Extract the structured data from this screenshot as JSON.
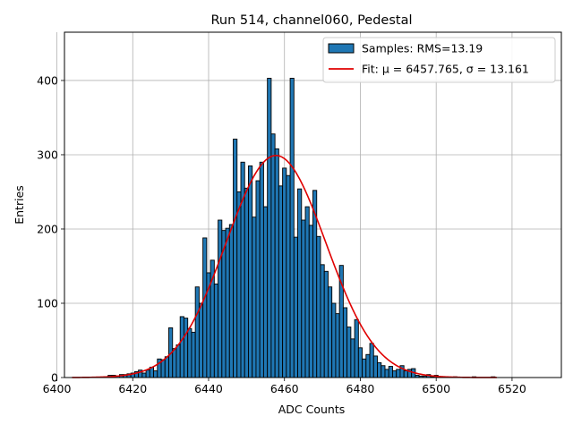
{
  "chart_data": {
    "type": "bar",
    "title": "Run 514, channel060, Pedestal",
    "xlabel": "ADC Counts",
    "ylabel": "Entries",
    "xlim": [
      6402,
      6533
    ],
    "ylim": [
      0,
      465
    ],
    "xticks": [
      6400,
      6420,
      6440,
      6460,
      6480,
      6500,
      6520
    ],
    "yticks": [
      0,
      100,
      200,
      300,
      400
    ],
    "grid": true,
    "legend_position": "top-right",
    "series": [
      {
        "name": "Samples: RMS=13.19",
        "kind": "histogram",
        "color": "#1f77b4",
        "edgecolor": "#000000",
        "bin_width": 1,
        "bins": [
          [
            6414,
            3
          ],
          [
            6415,
            3
          ],
          [
            6416,
            2
          ],
          [
            6417,
            4
          ],
          [
            6418,
            4
          ],
          [
            6419,
            5
          ],
          [
            6420,
            6
          ],
          [
            6421,
            8
          ],
          [
            6422,
            10
          ],
          [
            6423,
            6
          ],
          [
            6424,
            10
          ],
          [
            6425,
            14
          ],
          [
            6426,
            9
          ],
          [
            6427,
            25
          ],
          [
            6428,
            24
          ],
          [
            6429,
            28
          ],
          [
            6430,
            67
          ],
          [
            6431,
            39
          ],
          [
            6432,
            44
          ],
          [
            6433,
            82
          ],
          [
            6434,
            80
          ],
          [
            6435,
            66
          ],
          [
            6436,
            61
          ],
          [
            6437,
            122
          ],
          [
            6438,
            100
          ],
          [
            6439,
            188
          ],
          [
            6440,
            141
          ],
          [
            6441,
            158
          ],
          [
            6442,
            126
          ],
          [
            6443,
            212
          ],
          [
            6444,
            198
          ],
          [
            6445,
            201
          ],
          [
            6446,
            206
          ],
          [
            6447,
            321
          ],
          [
            6448,
            250
          ],
          [
            6449,
            290
          ],
          [
            6450,
            255
          ],
          [
            6451,
            285
          ],
          [
            6452,
            216
          ],
          [
            6453,
            265
          ],
          [
            6454,
            290
          ],
          [
            6455,
            230
          ],
          [
            6456,
            403
          ],
          [
            6457,
            328
          ],
          [
            6458,
            308
          ],
          [
            6459,
            258
          ],
          [
            6460,
            282
          ],
          [
            6461,
            272
          ],
          [
            6462,
            403
          ],
          [
            6463,
            189
          ],
          [
            6464,
            254
          ],
          [
            6465,
            212
          ],
          [
            6466,
            230
          ],
          [
            6467,
            205
          ],
          [
            6468,
            252
          ],
          [
            6469,
            190
          ],
          [
            6470,
            152
          ],
          [
            6471,
            143
          ],
          [
            6472,
            122
          ],
          [
            6473,
            100
          ],
          [
            6474,
            86
          ],
          [
            6475,
            151
          ],
          [
            6476,
            94
          ],
          [
            6477,
            68
          ],
          [
            6478,
            52
          ],
          [
            6479,
            78
          ],
          [
            6480,
            40
          ],
          [
            6481,
            25
          ],
          [
            6482,
            31
          ],
          [
            6483,
            46
          ],
          [
            6484,
            29
          ],
          [
            6485,
            20
          ],
          [
            6486,
            16
          ],
          [
            6487,
            11
          ],
          [
            6488,
            15
          ],
          [
            6489,
            9
          ],
          [
            6490,
            11
          ],
          [
            6491,
            16
          ],
          [
            6492,
            9
          ],
          [
            6493,
            11
          ],
          [
            6494,
            12
          ],
          [
            6495,
            3
          ],
          [
            6496,
            2
          ],
          [
            6497,
            2
          ],
          [
            6498,
            4
          ],
          [
            6499,
            1
          ],
          [
            6500,
            3
          ],
          [
            6505,
            1
          ],
          [
            6510,
            1
          ],
          [
            6515,
            1
          ]
        ]
      },
      {
        "name": "Fit: μ = 6457.765, σ = 13.161",
        "kind": "gaussian_fit",
        "color": "#e00000",
        "mu": 6457.765,
        "sigma": 13.161,
        "amplitude": 299,
        "x_range": [
          6404,
          6516
        ]
      }
    ]
  }
}
